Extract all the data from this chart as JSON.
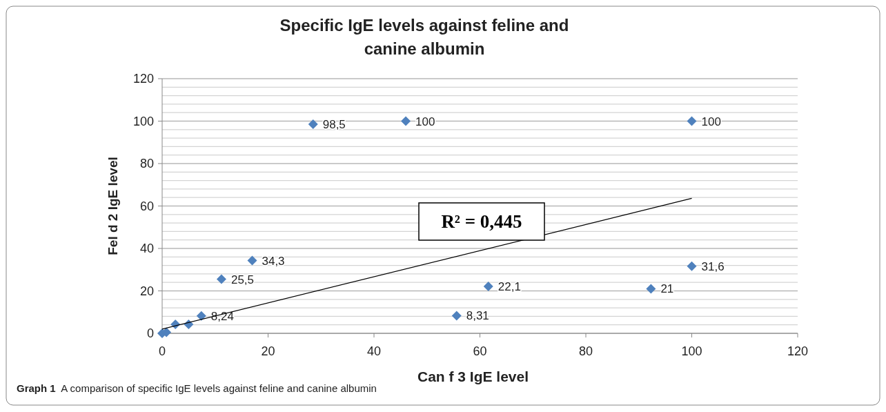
{
  "chart_data": {
    "type": "scatter",
    "title": "Specific IgE levels against feline and canine albumin",
    "xlabel": "Can f 3 IgE level",
    "ylabel": "Fel d 2 IgE level",
    "annotations": [
      "R² = 0,445",
      "Graph 1  A comparison of specific IgE levels against feline and canine albumin"
    ],
    "xlim": [
      0,
      120
    ],
    "xticks": [
      0,
      20,
      40,
      60,
      80,
      100,
      120
    ],
    "ylim": [
      0,
      120
    ],
    "yticks": [
      0,
      {
        "value": 4,
        "label": null
      },
      {
        "value": 8,
        "label": null
      },
      {
        "value": 12,
        "label": null
      },
      {
        "value": 16,
        "label": null
      },
      20,
      {
        "value": 24,
        "label": null
      },
      {
        "value": 28,
        "label": null
      },
      {
        "value": 32,
        "label": null
      },
      {
        "value": 36,
        "label": null
      },
      40,
      {
        "value": 44,
        "label": null
      },
      {
        "value": 48,
        "label": null
      },
      {
        "value": 52,
        "label": null
      },
      {
        "value": 56,
        "label": null
      },
      60,
      {
        "value": 64,
        "label": null
      },
      {
        "value": 68,
        "label": null
      },
      {
        "value": 72,
        "label": null
      },
      {
        "value": 76,
        "label": null
      },
      80,
      {
        "value": 84,
        "label": null
      },
      {
        "value": 88,
        "label": null
      },
      {
        "value": 92,
        "label": null
      },
      {
        "value": 96,
        "label": null
      },
      100,
      {
        "value": 104,
        "label": null
      },
      {
        "value": 108,
        "label": null
      },
      {
        "value": 112,
        "label": null
      },
      {
        "value": 116,
        "label": null
      },
      120
    ],
    "grid": "y",
    "marker": "diamond",
    "series": [
      {
        "color": "#4f81bd",
        "x": [
          0,
          0.8,
          2.5,
          5,
          7.4,
          11.2,
          17,
          28.5,
          46,
          55.6,
          61.6,
          92.3,
          100,
          100
        ],
        "values": [
          0,
          0.5,
          4.2,
          4.2,
          8.24,
          25.5,
          34.3,
          98.5,
          100,
          8.31,
          22.1,
          21,
          31.6,
          100
        ],
        "value_labels": [
          null,
          null,
          null,
          null,
          "8,24",
          "25,5",
          "34,3",
          "98,5",
          "100",
          "8,31",
          "22,1",
          "21",
          "31,6",
          "100"
        ]
      },
      {
        "type": "line",
        "color": "#000000",
        "x": [
          0,
          100
        ],
        "values": [
          2,
          63.6
        ],
        "marker": "none"
      }
    ]
  }
}
